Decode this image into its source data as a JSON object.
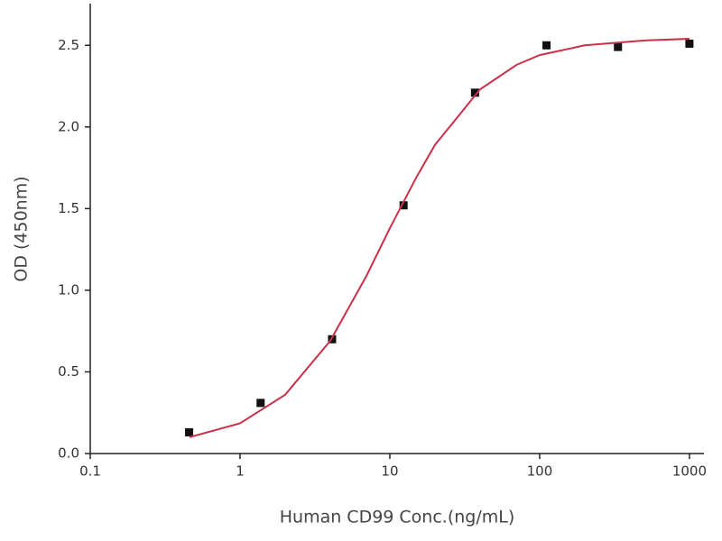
{
  "chart_data": {
    "type": "scatter",
    "x_label": "Human CD99 Conc.(ng/mL)",
    "y_label": "OD (450nm)",
    "x_log": true,
    "xlim": [
      0.1,
      1250
    ],
    "xticks": [
      0.1,
      1,
      10,
      100,
      1000
    ],
    "ylim": [
      0,
      2.75
    ],
    "yticks": [
      {
        "value": 0,
        "label": "0.0"
      },
      0.5,
      {
        "value": 1,
        "label": "1.0"
      },
      1.5,
      {
        "value": 2,
        "label": "2.0"
      },
      2.5
    ],
    "series": [
      {
        "type": "scatter",
        "color": "#111111",
        "x": [
          0.457,
          1.372,
          4.115,
          12.35,
          37.04,
          111.1,
          333.3,
          1000
        ],
        "values": [
          0.13,
          0.31,
          0.7,
          1.52,
          2.21,
          2.5,
          2.49,
          2.51
        ]
      },
      {
        "type": "line",
        "color": "#c8324a",
        "x": [
          0.46,
          1,
          2,
          4,
          7,
          10,
          15,
          20,
          40,
          70,
          100,
          200,
          500,
          1000
        ],
        "values": [
          0.1,
          0.185,
          0.36,
          0.69,
          1.09,
          1.38,
          1.69,
          1.89,
          2.23,
          2.38,
          2.44,
          2.5,
          2.53,
          2.54
        ]
      }
    ]
  }
}
